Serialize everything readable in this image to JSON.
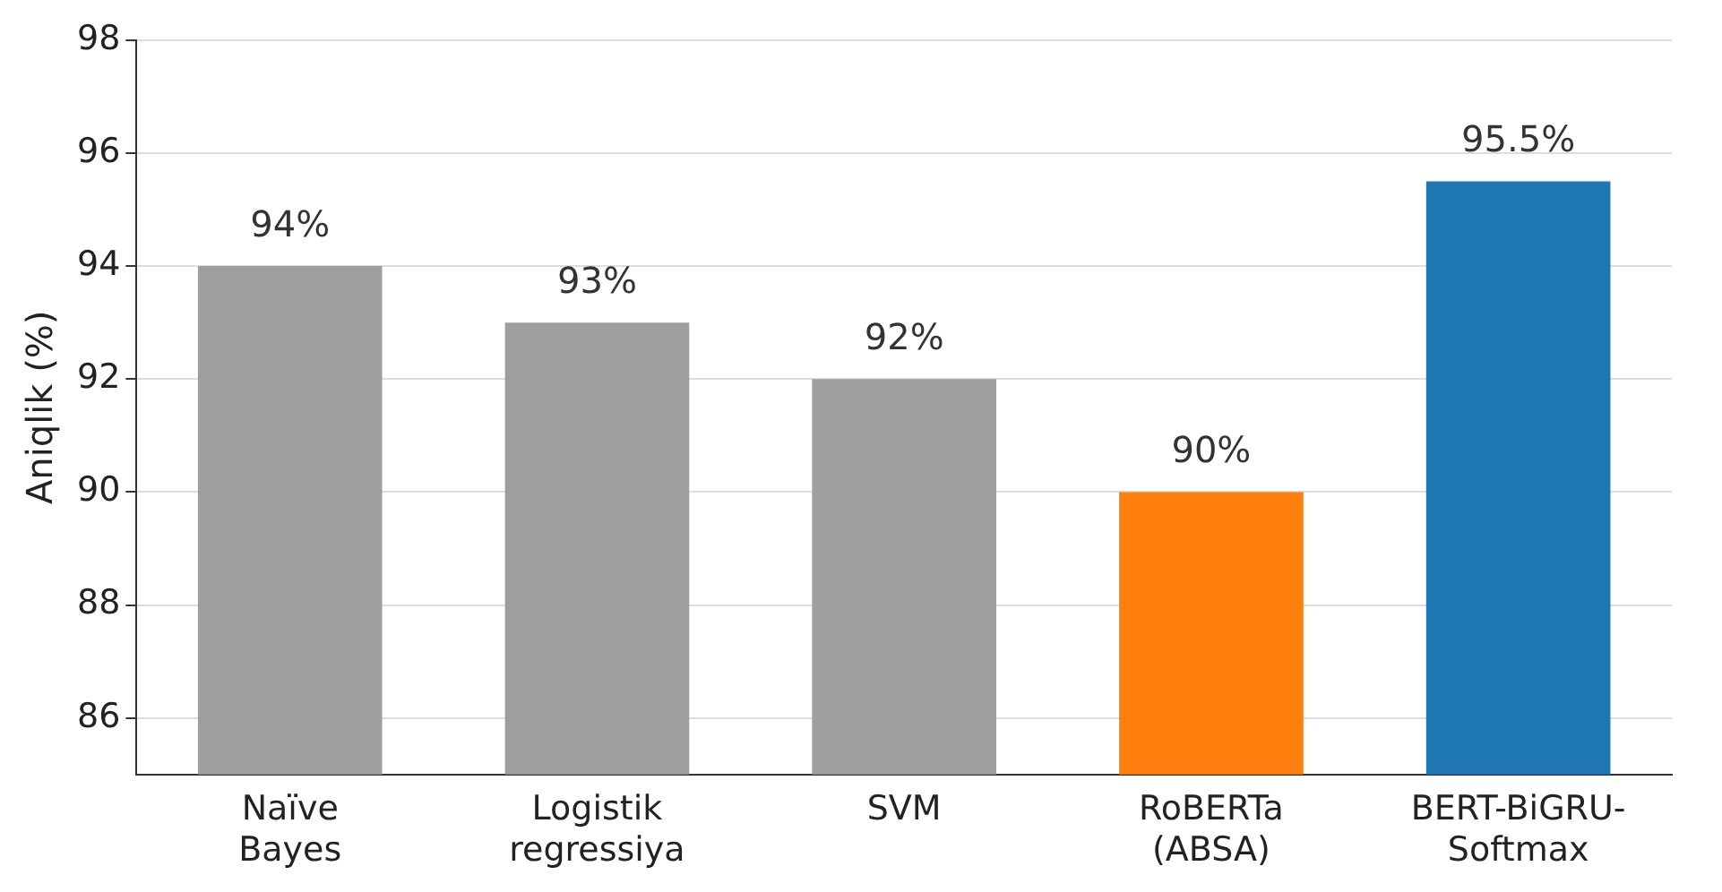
{
  "chart_data": {
    "type": "bar",
    "ylabel": "Aniqlik (%)",
    "categories": [
      "Naïve Bayes",
      "Logistik regressiya",
      "SVM",
      "RoBERTa (ABSA)",
      "BERT-BiGRU-Softmax"
    ],
    "values": [
      94,
      93,
      92,
      90,
      95.5
    ],
    "colors": [
      "#9e9e9e",
      "#9e9e9e",
      "#9e9e9e",
      "#ff7f0e",
      "#1f77b4"
    ],
    "value_labels": [
      "94%",
      "93%",
      "92%",
      "90%",
      "95.5%"
    ],
    "ylim": [
      85,
      98
    ],
    "yticks": [
      86,
      88,
      90,
      92,
      94,
      96,
      98
    ],
    "grid": "y",
    "legend": false
  }
}
